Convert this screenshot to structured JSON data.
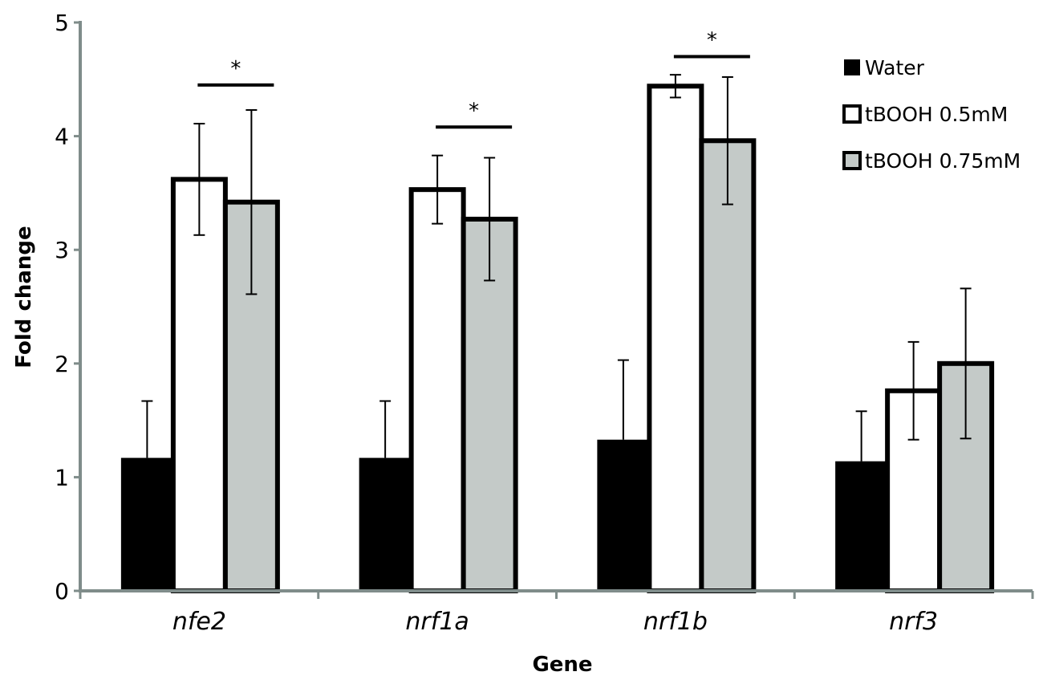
{
  "chart_data": {
    "type": "bar",
    "xlabel": "Gene",
    "ylabel": "Fold change",
    "ylim": [
      0,
      5
    ],
    "yticks": [
      0,
      1,
      2,
      3,
      4,
      5
    ],
    "yticks_labels": [
      "0",
      "1",
      "2",
      "3",
      "4",
      "5"
    ],
    "categories": [
      "nfe2",
      "nrf1a",
      "nrf1b",
      "nrf3"
    ],
    "series": [
      {
        "name": "Water",
        "values": [
          1.17,
          1.17,
          1.33,
          1.14
        ],
        "errors": [
          0.5,
          0.5,
          0.7,
          0.44
        ],
        "color": "#000000",
        "fill": "#000000"
      },
      {
        "name": "tBOOH 0.5mM",
        "values": [
          3.62,
          3.53,
          4.44,
          1.76
        ],
        "errors": [
          0.49,
          0.3,
          0.1,
          0.43
        ],
        "color": "#000000",
        "fill": "#ffffff"
      },
      {
        "name": "tBOOH 0.75mM",
        "values": [
          3.42,
          3.27,
          3.96,
          2.0
        ],
        "errors": [
          0.81,
          0.54,
          0.56,
          0.66
        ],
        "color": "#000000",
        "fill": "#c4cac8"
      }
    ],
    "significance": [
      {
        "category": "nfe2",
        "label": "*",
        "y": 4.45
      },
      {
        "category": "nrf1a",
        "label": "*",
        "y": 4.08
      },
      {
        "category": "nrf1b",
        "label": "*",
        "y": 4.7
      }
    ],
    "legend_position": "top-right",
    "grid": false,
    "axis_color": "#7f8c8a"
  }
}
